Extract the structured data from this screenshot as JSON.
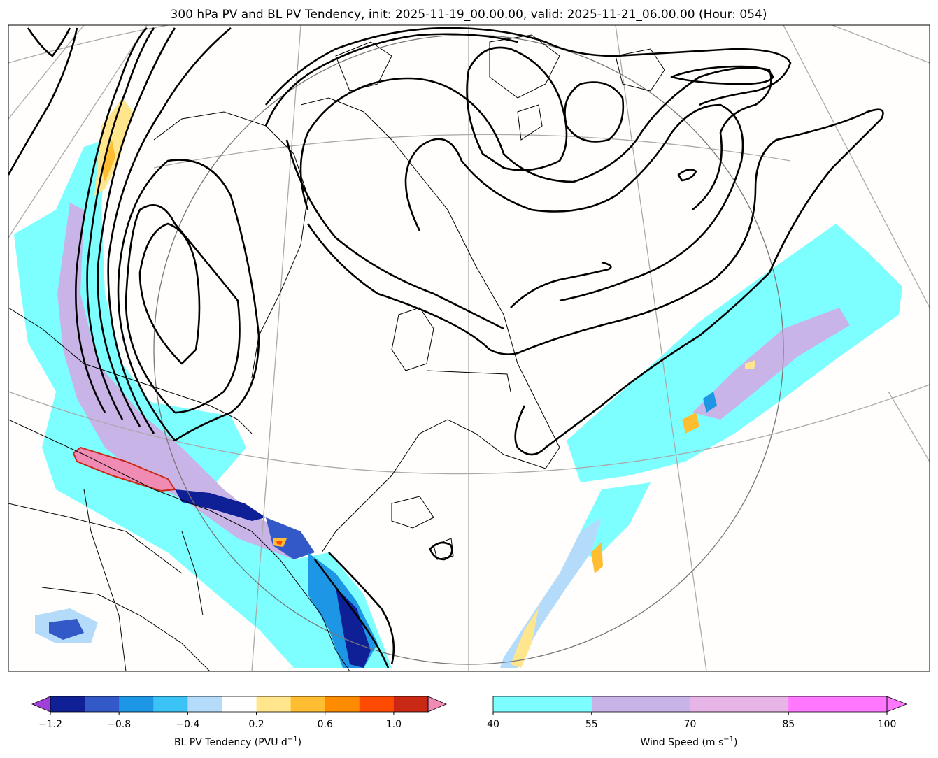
{
  "chart_data": {
    "type": "map-contour",
    "title": "300 hPa PV and BL PV Tendency, init: 2025-11-19_00.00.00, valid: 2025-11-21_06.00.00 (Hour: 054)",
    "fields": [
      {
        "name": "300 hPa PV",
        "style": "black contours"
      },
      {
        "name": "BL PV Tendency",
        "style": "filled contours",
        "units": "PVU d^-1"
      },
      {
        "name": "Wind Speed",
        "style": "filled contours",
        "units": "m s^-1"
      }
    ],
    "colorbars": [
      {
        "id": "bl_pv_tendency",
        "label_main": "BL PV Tendency (PVU d",
        "label_sup": "−1",
        "label_tail": ")",
        "levels": [
          -1.2,
          -1.0,
          -0.8,
          -0.6,
          -0.4,
          -0.2,
          0.2,
          0.4,
          0.6,
          0.8,
          1.0,
          1.2
        ],
        "colors": [
          "#0f1f96",
          "#3358c8",
          "#1e96e6",
          "#3cc3f5",
          "#b4dcfa",
          "#ffffff",
          "#ffe68c",
          "#ffbe32",
          "#ff8c00",
          "#ff4b00",
          "#c82814"
        ],
        "under_color": "#a040d8",
        "over_color": "#f08cb4",
        "tick_labels": [
          "−1.2",
          "−0.8",
          "−0.4",
          "0.2",
          "0.6",
          "1.0"
        ],
        "tick_values": [
          -1.2,
          -0.8,
          -0.4,
          0.2,
          0.6,
          1.0
        ]
      },
      {
        "id": "wind_speed",
        "label_main": "Wind Speed (m s",
        "label_sup": "−1",
        "label_tail": ")",
        "levels": [
          40,
          55,
          70,
          85,
          100
        ],
        "colors": [
          "#7dffff",
          "#c8b4e6",
          "#e6b4e6",
          "#ff78ff"
        ],
        "over_color": "#ff78ff",
        "tick_labels": [
          "40",
          "55",
          "70",
          "85",
          "100"
        ],
        "tick_values": [
          40,
          55,
          70,
          85,
          100
        ]
      }
    ]
  }
}
